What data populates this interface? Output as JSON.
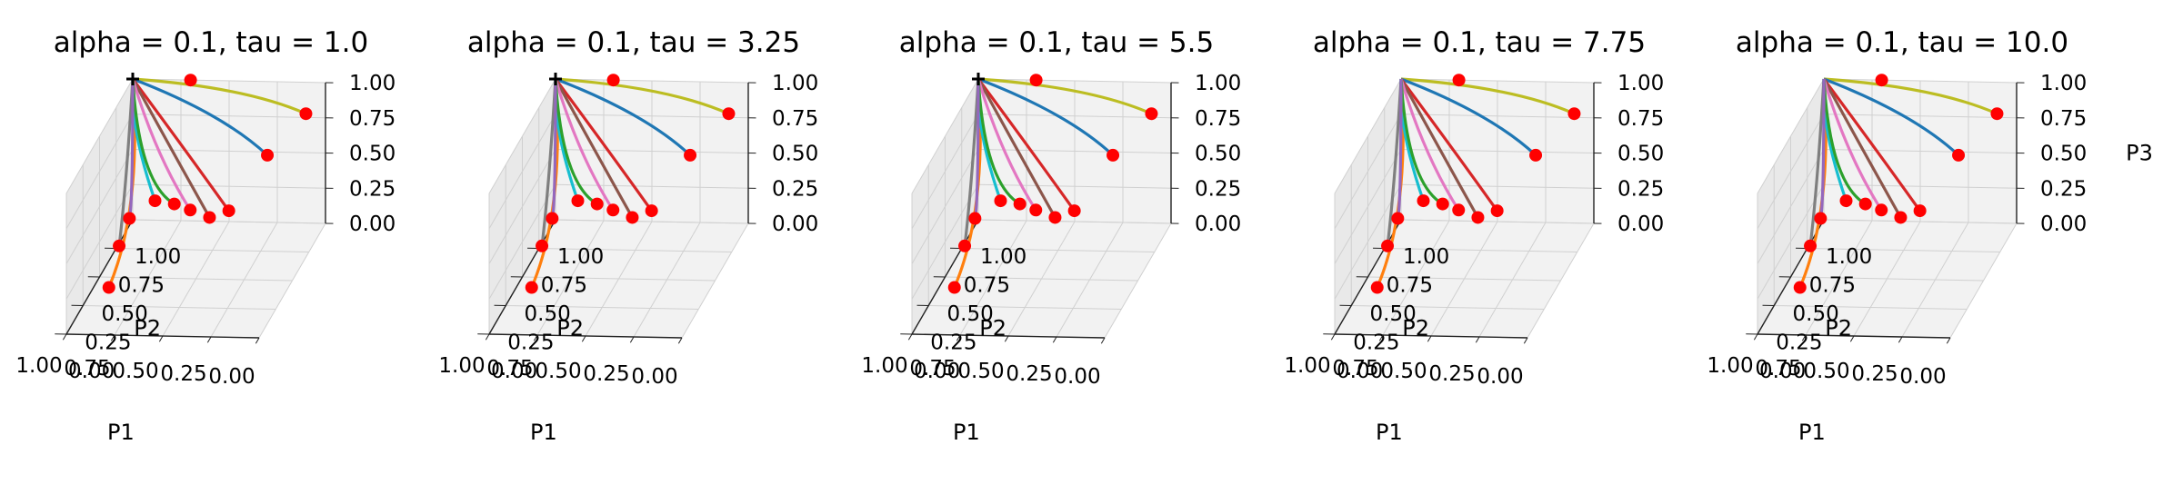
{
  "chart_data": [
    {
      "type": "line3d",
      "title": "alpha = 0.1, tau = 1.0",
      "xlabel": "P1",
      "ylabel": "P2",
      "zlabel": "",
      "xlim": [
        0,
        1
      ],
      "ylim": [
        0,
        1
      ],
      "zlim": [
        0,
        1
      ],
      "ticks": [
        "0.00",
        "0.25",
        "0.50",
        "0.75",
        "1.00"
      ],
      "grid": true,
      "series": [
        {
          "color": "#bcbd22",
          "start": [
            0.05,
            0.85,
            0.9
          ],
          "ctrl": [
            0.4,
            0.95,
            1.0
          ]
        },
        {
          "color": "#1f77b4",
          "start": [
            0.25,
            0.85,
            0.6
          ],
          "ctrl": [
            0.5,
            0.9,
            0.85
          ]
        },
        {
          "color": "#d62728",
          "start": [
            0.45,
            0.85,
            0.2
          ],
          "ctrl": [
            0.7,
            0.9,
            0.6
          ]
        },
        {
          "color": "#8c564b",
          "start": [
            0.55,
            0.85,
            0.15
          ],
          "ctrl": [
            0.75,
            0.9,
            0.55
          ]
        },
        {
          "color": "#e377c2",
          "start": [
            0.65,
            0.85,
            0.2
          ],
          "ctrl": [
            0.85,
            0.9,
            0.55
          ]
        },
        {
          "color": "#ff7f0e",
          "start": [
            0.9,
            0.35,
            0.05
          ],
          "ctrl": [
            0.9,
            0.85,
            0.2
          ]
        },
        {
          "color": "#17becf",
          "start": [
            0.85,
            0.9,
            0.22
          ],
          "ctrl": [
            1.0,
            0.95,
            0.7
          ]
        },
        {
          "color": "#2ca02c",
          "start": [
            0.75,
            0.9,
            0.2
          ],
          "ctrl": [
            0.95,
            0.95,
            0.3
          ]
        },
        {
          "color": "#7f7f7f",
          "start": [
            0.95,
            0.65,
            0.1
          ],
          "ctrl": [
            1.0,
            0.9,
            0.3
          ]
        },
        {
          "color": "#9467bd",
          "start": [
            1.0,
            0.95,
            0.05
          ],
          "ctrl": [
            1.0,
            1.0,
            0.1
          ]
        }
      ],
      "end": [
        1,
        1,
        1
      ],
      "end_marker": "plus",
      "red_point": [
        0.7,
        1.0,
        1.0
      ]
    },
    {
      "type": "line3d",
      "title": "alpha = 0.1, tau = 3.25",
      "xlabel": "P1",
      "ylabel": "P2",
      "zlabel": "",
      "xlim": [
        0,
        1
      ],
      "ylim": [
        0,
        1
      ],
      "zlim": [
        0,
        1
      ],
      "ticks": [
        "0.00",
        "0.25",
        "0.50",
        "0.75",
        "1.00"
      ],
      "grid": true,
      "series": [
        {
          "color": "#bcbd22",
          "start": [
            0.05,
            0.85,
            0.9
          ],
          "ctrl": [
            0.4,
            0.95,
            1.0
          ]
        },
        {
          "color": "#1f77b4",
          "start": [
            0.25,
            0.85,
            0.6
          ],
          "ctrl": [
            0.5,
            0.9,
            0.85
          ]
        },
        {
          "color": "#d62728",
          "start": [
            0.45,
            0.85,
            0.2
          ],
          "ctrl": [
            0.7,
            0.9,
            0.6
          ]
        },
        {
          "color": "#8c564b",
          "start": [
            0.55,
            0.85,
            0.15
          ],
          "ctrl": [
            0.75,
            0.9,
            0.55
          ]
        },
        {
          "color": "#e377c2",
          "start": [
            0.65,
            0.85,
            0.2
          ],
          "ctrl": [
            0.85,
            0.9,
            0.55
          ]
        },
        {
          "color": "#ff7f0e",
          "start": [
            0.9,
            0.35,
            0.05
          ],
          "ctrl": [
            0.9,
            0.85,
            0.2
          ]
        },
        {
          "color": "#17becf",
          "start": [
            0.85,
            0.9,
            0.22
          ],
          "ctrl": [
            1.0,
            0.95,
            0.7
          ]
        },
        {
          "color": "#2ca02c",
          "start": [
            0.75,
            0.9,
            0.2
          ],
          "ctrl": [
            0.95,
            0.95,
            0.3
          ]
        },
        {
          "color": "#7f7f7f",
          "start": [
            0.95,
            0.65,
            0.1
          ],
          "ctrl": [
            1.0,
            0.9,
            0.3
          ]
        },
        {
          "color": "#9467bd",
          "start": [
            1.0,
            0.95,
            0.05
          ],
          "ctrl": [
            1.0,
            1.0,
            0.1
          ]
        }
      ],
      "end": [
        1,
        1,
        1
      ],
      "end_marker": "plus",
      "red_point": [
        0.7,
        1.0,
        1.0
      ]
    },
    {
      "type": "line3d",
      "title": "alpha = 0.1, tau = 5.5",
      "xlabel": "P1",
      "ylabel": "P2",
      "zlabel": "",
      "xlim": [
        0,
        1
      ],
      "ylim": [
        0,
        1
      ],
      "zlim": [
        0,
        1
      ],
      "ticks": [
        "0.00",
        "0.25",
        "0.50",
        "0.75",
        "1.00"
      ],
      "grid": true,
      "series": [
        {
          "color": "#bcbd22",
          "start": [
            0.05,
            0.85,
            0.9
          ],
          "ctrl": [
            0.4,
            0.95,
            1.0
          ]
        },
        {
          "color": "#1f77b4",
          "start": [
            0.25,
            0.85,
            0.6
          ],
          "ctrl": [
            0.5,
            0.9,
            0.85
          ]
        },
        {
          "color": "#d62728",
          "start": [
            0.45,
            0.85,
            0.2
          ],
          "ctrl": [
            0.7,
            0.9,
            0.6
          ]
        },
        {
          "color": "#8c564b",
          "start": [
            0.55,
            0.85,
            0.15
          ],
          "ctrl": [
            0.75,
            0.9,
            0.55
          ]
        },
        {
          "color": "#e377c2",
          "start": [
            0.65,
            0.85,
            0.2
          ],
          "ctrl": [
            0.85,
            0.9,
            0.55
          ]
        },
        {
          "color": "#ff7f0e",
          "start": [
            0.9,
            0.35,
            0.05
          ],
          "ctrl": [
            0.9,
            0.85,
            0.2
          ]
        },
        {
          "color": "#17becf",
          "start": [
            0.85,
            0.9,
            0.22
          ],
          "ctrl": [
            1.0,
            0.95,
            0.7
          ]
        },
        {
          "color": "#2ca02c",
          "start": [
            0.75,
            0.9,
            0.2
          ],
          "ctrl": [
            0.95,
            0.95,
            0.3
          ]
        },
        {
          "color": "#7f7f7f",
          "start": [
            0.95,
            0.65,
            0.1
          ],
          "ctrl": [
            1.0,
            0.9,
            0.3
          ]
        },
        {
          "color": "#9467bd",
          "start": [
            1.0,
            0.95,
            0.05
          ],
          "ctrl": [
            1.0,
            1.0,
            0.1
          ]
        }
      ],
      "end": [
        1,
        1,
        1
      ],
      "end_marker": "plus",
      "red_point": [
        0.7,
        1.0,
        1.0
      ]
    },
    {
      "type": "line3d",
      "title": "alpha = 0.1, tau = 7.75",
      "xlabel": "P1",
      "ylabel": "P2",
      "zlabel": "",
      "xlim": [
        0,
        1
      ],
      "ylim": [
        0,
        1
      ],
      "zlim": [
        0,
        1
      ],
      "ticks": [
        "0.00",
        "0.25",
        "0.50",
        "0.75",
        "1.00"
      ],
      "grid": true,
      "series": [
        {
          "color": "#bcbd22",
          "start": [
            0.05,
            0.85,
            0.9
          ],
          "ctrl": [
            0.4,
            0.95,
            1.0
          ]
        },
        {
          "color": "#1f77b4",
          "start": [
            0.25,
            0.85,
            0.6
          ],
          "ctrl": [
            0.5,
            0.9,
            0.85
          ]
        },
        {
          "color": "#d62728",
          "start": [
            0.45,
            0.85,
            0.2
          ],
          "ctrl": [
            0.7,
            0.9,
            0.6
          ]
        },
        {
          "color": "#8c564b",
          "start": [
            0.55,
            0.85,
            0.15
          ],
          "ctrl": [
            0.75,
            0.9,
            0.55
          ]
        },
        {
          "color": "#e377c2",
          "start": [
            0.65,
            0.85,
            0.2
          ],
          "ctrl": [
            0.85,
            0.9,
            0.55
          ]
        },
        {
          "color": "#ff7f0e",
          "start": [
            0.9,
            0.35,
            0.05
          ],
          "ctrl": [
            0.9,
            0.85,
            0.2
          ]
        },
        {
          "color": "#17becf",
          "start": [
            0.85,
            0.9,
            0.22
          ],
          "ctrl": [
            1.0,
            0.95,
            0.7
          ]
        },
        {
          "color": "#2ca02c",
          "start": [
            0.75,
            0.9,
            0.2
          ],
          "ctrl": [
            0.95,
            0.95,
            0.3
          ]
        },
        {
          "color": "#7f7f7f",
          "start": [
            0.95,
            0.65,
            0.1
          ],
          "ctrl": [
            1.0,
            0.9,
            0.3
          ]
        },
        {
          "color": "#9467bd",
          "start": [
            1.0,
            0.95,
            0.05
          ],
          "ctrl": [
            1.0,
            1.0,
            0.1
          ]
        }
      ],
      "end": [
        1,
        1,
        1
      ],
      "end_marker": "none",
      "red_point": [
        0.7,
        1.0,
        1.0
      ]
    },
    {
      "type": "line3d",
      "title": "alpha = 0.1, tau = 10.0",
      "xlabel": "P1",
      "ylabel": "P2",
      "zlabel": "P3",
      "xlim": [
        0,
        1
      ],
      "ylim": [
        0,
        1
      ],
      "zlim": [
        0,
        1
      ],
      "ticks": [
        "0.00",
        "0.25",
        "0.50",
        "0.75",
        "1.00"
      ],
      "grid": true,
      "series": [
        {
          "color": "#bcbd22",
          "start": [
            0.05,
            0.85,
            0.9
          ],
          "ctrl": [
            0.4,
            0.95,
            1.0
          ]
        },
        {
          "color": "#1f77b4",
          "start": [
            0.25,
            0.85,
            0.6
          ],
          "ctrl": [
            0.5,
            0.9,
            0.85
          ]
        },
        {
          "color": "#d62728",
          "start": [
            0.45,
            0.85,
            0.2
          ],
          "ctrl": [
            0.7,
            0.9,
            0.6
          ]
        },
        {
          "color": "#8c564b",
          "start": [
            0.55,
            0.85,
            0.15
          ],
          "ctrl": [
            0.75,
            0.9,
            0.55
          ]
        },
        {
          "color": "#e377c2",
          "start": [
            0.65,
            0.85,
            0.2
          ],
          "ctrl": [
            0.85,
            0.9,
            0.55
          ]
        },
        {
          "color": "#ff7f0e",
          "start": [
            0.9,
            0.35,
            0.05
          ],
          "ctrl": [
            0.9,
            0.85,
            0.2
          ]
        },
        {
          "color": "#17becf",
          "start": [
            0.85,
            0.9,
            0.22
          ],
          "ctrl": [
            1.0,
            0.95,
            0.7
          ]
        },
        {
          "color": "#2ca02c",
          "start": [
            0.75,
            0.9,
            0.2
          ],
          "ctrl": [
            0.95,
            0.95,
            0.3
          ]
        },
        {
          "color": "#7f7f7f",
          "start": [
            0.95,
            0.65,
            0.1
          ],
          "ctrl": [
            1.0,
            0.9,
            0.3
          ]
        },
        {
          "color": "#9467bd",
          "start": [
            1.0,
            0.95,
            0.05
          ],
          "ctrl": [
            1.0,
            1.0,
            0.1
          ]
        }
      ],
      "end": [
        1,
        1,
        1
      ],
      "end_marker": "none",
      "red_point": [
        0.7,
        1.0,
        1.0
      ]
    }
  ],
  "colors": {
    "point": "#ff0000",
    "pane": "#f2f2f2",
    "pane_side": "#e9e9e9",
    "grid": "#d0d0d0"
  }
}
